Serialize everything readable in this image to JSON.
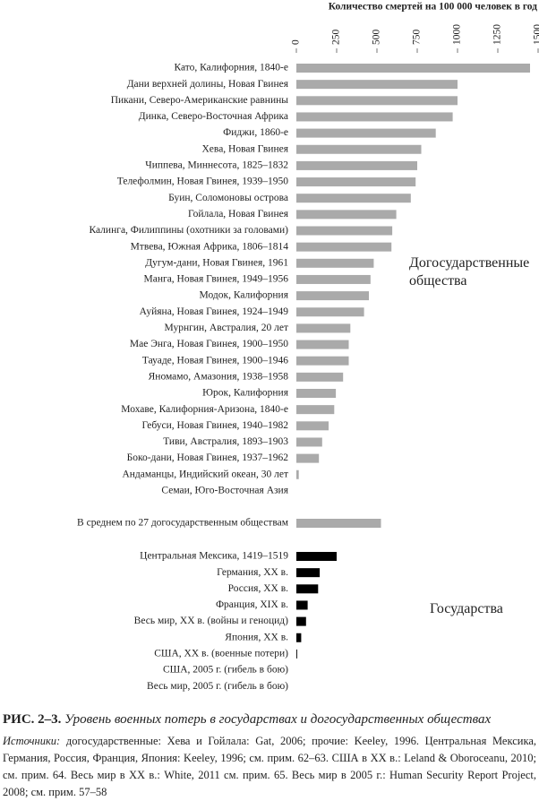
{
  "chart_data": {
    "type": "bar",
    "orientation": "horizontal",
    "x_label": "Количество смертей на 100 000 человек в год",
    "xlim": [
      0,
      1500
    ],
    "xticks": [
      0,
      250,
      500,
      750,
      1000,
      1250,
      1500
    ],
    "series": [
      {
        "name": "Догосударственные общества",
        "color": "#aaaaaa",
        "categories": [
          "Като, Калифорния, 1840-е",
          "Дани верхней долины, Новая Гвинея",
          "Пикани, Северо-Американские равнины",
          "Динка, Северо-Восточная Африка",
          "Фиджи, 1860-е",
          "Хева, Новая Гвинея",
          "Чиппева, Миннесота, 1825–1832",
          "Телефолмин, Новая Гвинея, 1939–1950",
          "Буин, Соломоновы острова",
          "Гойлала, Новая Гвинея",
          "Калинга, Филиппины (охотники за головами)",
          "Мтвева, Южная Африка, 1806–1814",
          "Дугум-дани, Новая Гвинея, 1961",
          "Манга, Новая Гвинея, 1949–1956",
          "Модок, Калифорния",
          "Ауйяна, Новая Гвинея, 1924–1949",
          "Мурнгин, Австралия, 20 лет",
          "Мае Энга, Новая Гвинея, 1900–1950",
          "Тауаде, Новая Гвинея, 1900–1946",
          "Яномамо, Амазония, 1938–1958",
          "Юрок, Калифорния",
          "Мохаве, Калифорния-Аризона, 1840-е",
          "Гебуси, Новая Гвинея, 1940–1982",
          "Тиви, Австралия, 1893–1903",
          "Боко-дани, Новая Гвинея, 1937–1962",
          "Андаманцы, Индийский океан, 30 лет",
          "Семаи, Юго-Восточная Азия"
        ],
        "values": [
          1450,
          1000,
          1000,
          970,
          865,
          775,
          750,
          740,
          710,
          620,
          595,
          590,
          480,
          460,
          450,
          420,
          335,
          325,
          325,
          290,
          245,
          235,
          200,
          160,
          140,
          15,
          0
        ]
      },
      {
        "color": "#aaaaaa",
        "categories": [
          "В среднем по 27 догосударственным обществам"
        ],
        "values": [
          525
        ]
      },
      {
        "name": "Государства",
        "color": "#000000",
        "categories": [
          "Центральная Мексика, 1419–1519",
          "Германия, XX в.",
          "Россия, XX в.",
          "Франция, XIX в.",
          "Весь мир, XX в. (войны и геноцид)",
          "Япония, XX в.",
          "США, XX в. (военные потери)",
          "США, 2005 г. (гибель в бою)",
          "Весь мир, 2005 г. (гибель в бою)"
        ],
        "values": [
          250,
          145,
          135,
          70,
          60,
          30,
          5,
          0,
          0
        ]
      }
    ]
  },
  "caption": {
    "number": "РИС. 2–3.",
    "title": "Уровень военных потерь в государствах и догосударственных обществах",
    "sources_label": "Источники:",
    "sources": "догосударственные: Хева и Гойлала: Gat, 2006; прочие: Keeley, 1996. Центральная Мексика, Германия, Россия, Франция, Япония: Keeley, 1996; см. прим. 62–63. США в XX в.: Leland & Oboroceanu, 2010; см. прим. 64. Весь мир в XX в.: White, 2011 см. прим. 65. Весь мир в 2005 г.: Human Security Report Project, 2008; см. прим. 57–58"
  }
}
